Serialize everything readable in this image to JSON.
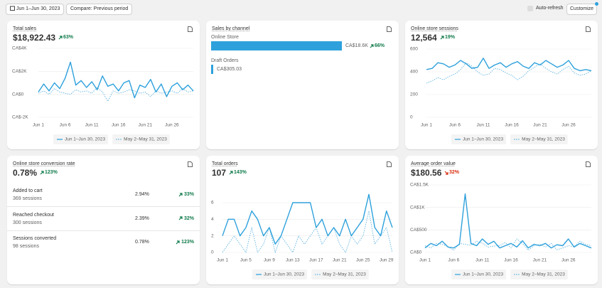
{
  "toolbar": {
    "date_range": "Jun 1–Jun 30, 2023",
    "compare": "Compare: Previous period",
    "auto_refresh": "Auto-refresh",
    "customize": "Customize"
  },
  "cards": [
    {
      "title": "Total sales",
      "value": "$18,922.43",
      "change": "63%",
      "change_color": "#0f7a4a",
      "chart": {
        "type": "line",
        "categories": [
          "Jun 1",
          null,
          null,
          null,
          null,
          "Jun 6",
          null,
          null,
          null,
          null,
          "Jun 11",
          null,
          null,
          null,
          null,
          "Jun 16",
          null,
          null,
          null,
          null,
          "Jun 21",
          null,
          null,
          null,
          null,
          "Jun 26",
          null,
          null,
          null,
          null
        ],
        "series": [
          {
            "name": "Jun 1–Jun 30, 2023",
            "color": "#2ea1dc",
            "style": "solid",
            "values": [
              200,
              900,
              300,
              1000,
              500,
              1400,
              2800,
              800,
              1200,
              600,
              1100,
              400,
              1600,
              700,
              900,
              300,
              1000,
              1200,
              -300,
              800,
              600,
              1300,
              200,
              900,
              -200,
              700,
              1000,
              400,
              800,
              300
            ]
          },
          {
            "name": "May 2–May 31, 2023",
            "color": "#5fb3e0",
            "style": "dashed",
            "values": [
              100,
              300,
              0,
              500,
              200,
              100,
              0,
              400,
              200,
              300,
              100,
              600,
              200,
              -600,
              300,
              100,
              200,
              400,
              300,
              100,
              200,
              -200,
              300,
              100,
              200,
              300,
              100,
              500,
              200,
              300
            ]
          }
        ],
        "ylim": [
          -2000,
          4000
        ],
        "yticks": [
          {
            "value": -2000,
            "label": "CA$-2K"
          },
          {
            "value": 0,
            "label": "CA$0"
          },
          {
            "value": 2000,
            "label": "CA$2K"
          },
          {
            "value": 4000,
            "label": "CA$4K"
          }
        ],
        "grid": true
      }
    },
    {
      "title": "Sales by channel",
      "channels": [
        {
          "name": "Online Store",
          "value": 18617,
          "value_label": "CA$18.6K",
          "change": "66%",
          "color": "#2ea1dc"
        },
        {
          "name": "Draft Orders",
          "value": 305.03,
          "value_label": "CA$305.03",
          "color": "#2ea1dc"
        }
      ]
    },
    {
      "title": "Online store sessions",
      "value": "12,564",
      "change": "19%",
      "change_color": "#0f7a4a",
      "chart": {
        "type": "line",
        "categories": [
          "Jun 1",
          null,
          null,
          null,
          null,
          "Jun 6",
          null,
          null,
          null,
          null,
          "Jun 11",
          null,
          null,
          null,
          null,
          "Jun 16",
          null,
          null,
          null,
          null,
          "Jun 21",
          null,
          null,
          null,
          null,
          "Jun 26",
          null,
          null,
          null,
          null
        ],
        "series": [
          {
            "name": "Jun 1–Jun 30, 2023",
            "color": "#2ea1dc",
            "style": "solid",
            "values": [
              420,
              430,
              480,
              470,
              440,
              460,
              500,
              470,
              430,
              440,
              520,
              430,
              460,
              480,
              440,
              470,
              490,
              450,
              430,
              480,
              460,
              500,
              470,
              440,
              460,
              500,
              430,
              410,
              420,
              410
            ]
          },
          {
            "name": "May 2–May 31, 2023",
            "color": "#5fb3e0",
            "style": "dashed",
            "values": [
              300,
              320,
              350,
              330,
              360,
              380,
              420,
              480,
              450,
              400,
              370,
              380,
              430,
              420,
              390,
              370,
              330,
              360,
              410,
              440,
              470,
              430,
              400,
              380,
              420,
              450,
              390,
              370,
              380,
              410
            ]
          }
        ],
        "ylim": [
          0,
          600
        ],
        "yticks": [
          0,
          200,
          400,
          600
        ],
        "grid": true
      }
    },
    {
      "title": "Online store conversion rate",
      "value": "0.78%",
      "change": "123%",
      "change_color": "#0f7a4a",
      "rows": [
        {
          "label": "Added to cart",
          "sessions": "369 sessions",
          "rate": "2.94%",
          "change": "33%"
        },
        {
          "label": "Reached checkout",
          "sessions": "300 sessions",
          "rate": "2.39%",
          "change": "32%"
        },
        {
          "label": "Sessions converted",
          "sessions": "98 sessions",
          "rate": "0.78%",
          "change": "123%"
        }
      ]
    },
    {
      "title": "Total orders",
      "value": "107",
      "change": "143%",
      "change_color": "#0f7a4a",
      "chart": {
        "type": "line",
        "categories": [
          "Jun 1",
          null,
          null,
          null,
          "Jun 5",
          null,
          null,
          null,
          "Jun 9",
          null,
          null,
          null,
          "Jun 13",
          null,
          null,
          null,
          "Jun 17",
          null,
          null,
          null,
          "Jun 21",
          null,
          null,
          null,
          "Jun 25",
          null,
          null,
          null,
          "Jun 29",
          null
        ],
        "series": [
          {
            "name": "Jun 1–Jun 30, 2023",
            "color": "#2ea1dc",
            "style": "solid",
            "values": [
              2,
              4,
              4,
              2,
              3,
              5,
              4,
              2,
              3,
              1,
              2,
              4,
              6,
              6,
              6,
              6,
              3,
              4,
              2,
              3,
              2,
              4,
              2,
              3,
              4,
              7,
              3,
              2,
              5,
              3
            ]
          },
          {
            "name": "May 2–May 31, 2023",
            "color": "#5fb3e0",
            "style": "dashed",
            "values": [
              0,
              1,
              2,
              1,
              0,
              3,
              0,
              1,
              3,
              0,
              2,
              1,
              0,
              2,
              1,
              2,
              3,
              1,
              2,
              3,
              1,
              0,
              2,
              1,
              2,
              5,
              1,
              2,
              3,
              0
            ]
          }
        ],
        "ylim": [
          0,
          6
        ],
        "yticks": [
          0,
          2,
          4,
          6
        ],
        "grid": true
      }
    },
    {
      "title": "Average order value",
      "value": "$180.56",
      "change": "32%",
      "change_color": "#d82c0d",
      "chart": {
        "type": "line",
        "categories": [
          "Jun 1",
          null,
          null,
          null,
          null,
          "Jun 6",
          null,
          null,
          null,
          null,
          "Jun 11",
          null,
          null,
          null,
          null,
          "Jun 16",
          null,
          null,
          null,
          null,
          "Jun 21",
          null,
          null,
          null,
          null,
          "Jun 26",
          null,
          null,
          null,
          null
        ],
        "series": [
          {
            "name": "Jun 1–Jun 30, 2023",
            "color": "#2ea1dc",
            "style": "solid",
            "values": [
              100,
              200,
              150,
              250,
              120,
              100,
              180,
              1300,
              200,
              150,
              300,
              180,
              250,
              100,
              150,
              200,
              120,
              260,
              100,
              180,
              150,
              200,
              100,
              170,
              150,
              300,
              120,
              200,
              150,
              100
            ]
          },
          {
            "name": "May 2–May 31, 2023",
            "color": "#5fb3e0",
            "style": "dashed",
            "values": [
              150,
              100,
              200,
              180,
              130,
              50,
              200,
              180,
              160,
              250,
              200,
              120,
              140,
              150,
              220,
              100,
              300,
              200,
              50,
              150,
              180,
              120,
              200,
              60,
              100,
              150,
              130,
              250,
              180,
              150
            ]
          }
        ],
        "ylim": [
          0,
          1500
        ],
        "yticks": [
          {
            "value": 0,
            "label": "CA$0"
          },
          {
            "value": 500,
            "label": "CA$500"
          },
          {
            "value": 1000,
            "label": "CA$1K"
          },
          {
            "value": 1500,
            "label": "CA$1.5K"
          }
        ],
        "grid": true
      }
    }
  ]
}
